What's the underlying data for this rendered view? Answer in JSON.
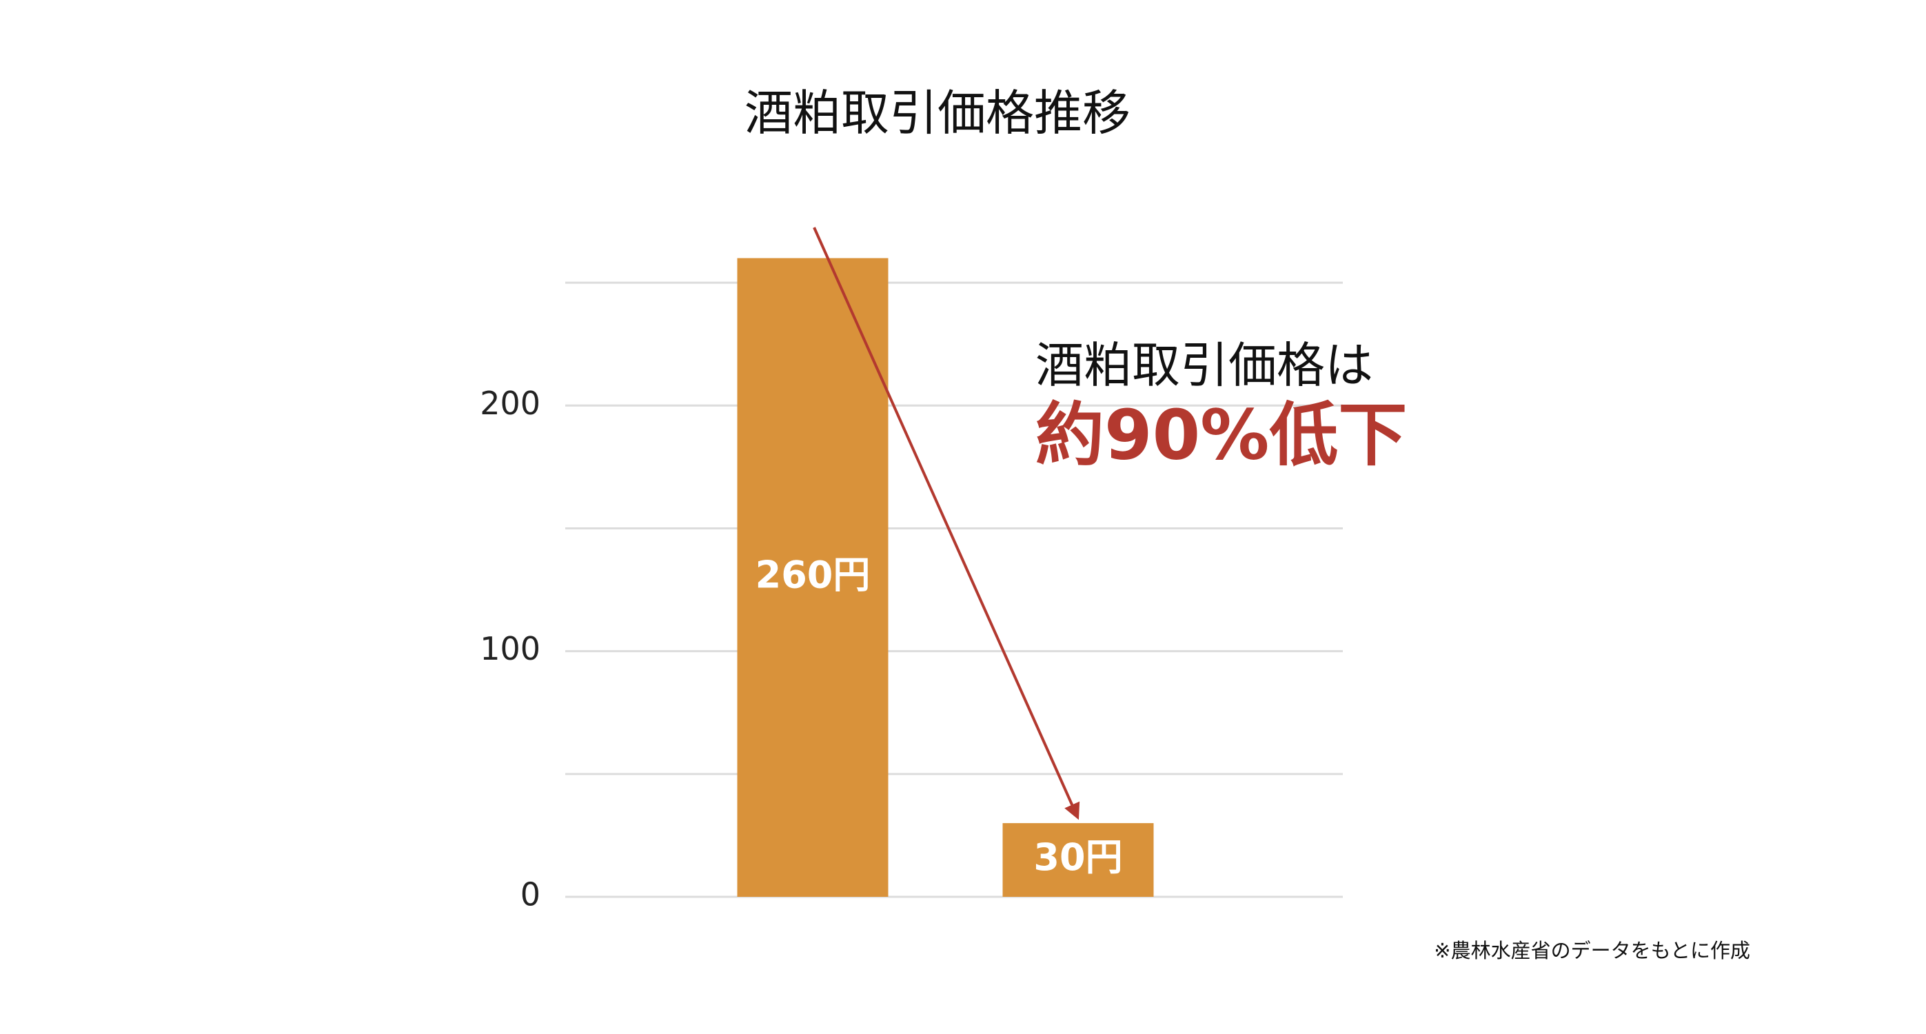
{
  "chart_data": {
    "type": "bar",
    "title": "酒粕取引価格推移",
    "categories": [
      null,
      null
    ],
    "values": [
      260,
      30
    ],
    "value_labels": [
      "260円",
      "30円"
    ],
    "color": "#d9923a",
    "ylim": [
      0,
      275
    ],
    "yticks": [
      0,
      100,
      200
    ],
    "minor_gridlines": [
      50,
      150,
      250
    ],
    "grid": true,
    "annotation": {
      "line1": "酒粕取引価格は",
      "line2": "約90%低下",
      "color": "#b3392f"
    },
    "footnote": "※農林水産省のデータをもとに作成"
  }
}
